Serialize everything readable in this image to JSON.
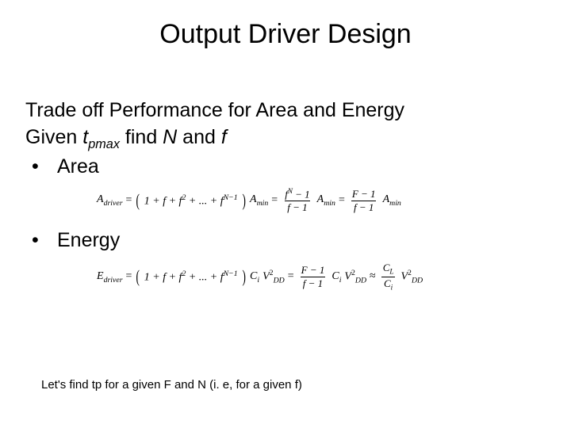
{
  "title": "Output Driver Design",
  "line1": "Trade off Performance for Area and Energy",
  "line2_pre": "Given ",
  "line2_var": "t",
  "line2_sub": "pmax",
  "line2_mid": " find ",
  "line2_N": "N",
  "line2_and": " and ",
  "line2_f": "f",
  "bullet_area": "Area",
  "bullet_energy": "Energy",
  "eq_area": {
    "lhs": "A",
    "lhs_sub": "driver",
    "series_open": "(",
    "series": "1 + f + f",
    "sq": "2",
    "dots": " + ... + f",
    "nm1": "N−1",
    "series_close": ")",
    "amin": "A",
    "amin_sub": "min",
    "frac1_num_a": "f",
    "frac1_num_exp": "N",
    "frac1_num_b": " − 1",
    "frac1_den": "f − 1",
    "frac2_num": "F − 1",
    "frac2_den": "f − 1"
  },
  "eq_energy": {
    "lhs": "E",
    "lhs_sub": "driver",
    "ci": "C",
    "ci_sub": "i",
    "vdd": "V",
    "vdd_sub": "DD",
    "vdd_sup": "2",
    "approx": "≈",
    "cl": "C",
    "cl_sub": "L",
    "fracA_num": "F − 1",
    "fracA_den": "f − 1",
    "fracB_num_a": "C",
    "fracB_num_sub": "L",
    "fracB_den_a": "C",
    "fracB_den_sub": "i"
  },
  "footer": "Let's find tp for a given F and N (i. e, for a given f)"
}
